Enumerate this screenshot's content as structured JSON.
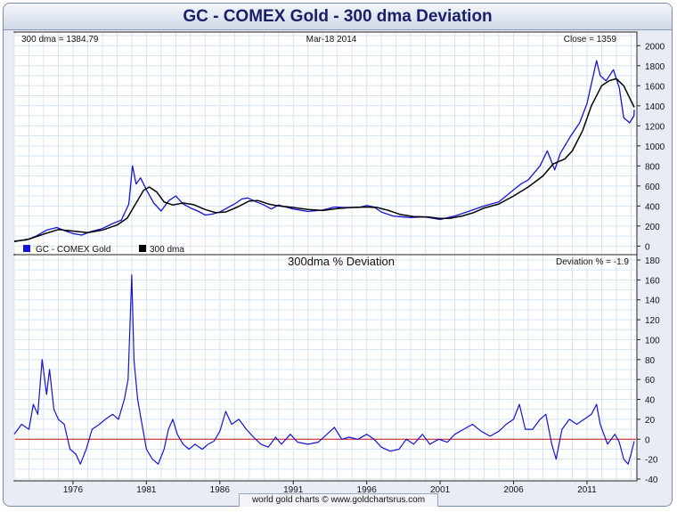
{
  "title": "GC - COMEX Gold - 300 dma Deviation",
  "footer": "world gold charts © www.goldchartsrus.com",
  "colors": {
    "price": "#1414d2",
    "dma": "#000000",
    "zero_line": "#cc1111",
    "grid": "#d6e4f2"
  },
  "chart_data": [
    {
      "type": "line",
      "info_left": "300 dma = 1384.79",
      "info_center": "Mar-18  2014",
      "info_right": "Close = 1359",
      "legend": [
        "GC - COMEX Gold",
        "300 dma"
      ],
      "ylim": [
        -50,
        2100
      ],
      "yticks": [
        0,
        200,
        400,
        600,
        800,
        1000,
        1200,
        1400,
        1600,
        1800,
        2000
      ],
      "series": [
        {
          "name": "GC - COMEX Gold",
          "color": "#1414d2",
          "points": [
            [
              1972.0,
              50
            ],
            [
              1972.8,
              60
            ],
            [
              1973.5,
              100
            ],
            [
              1974.2,
              160
            ],
            [
              1974.9,
              185
            ],
            [
              1975.5,
              150
            ],
            [
              1976.0,
              125
            ],
            [
              1976.6,
              110
            ],
            [
              1977.2,
              145
            ],
            [
              1978.0,
              175
            ],
            [
              1978.7,
              225
            ],
            [
              1979.3,
              260
            ],
            [
              1979.8,
              420
            ],
            [
              1980.05,
              800
            ],
            [
              1980.3,
              620
            ],
            [
              1980.6,
              680
            ],
            [
              1981.0,
              560
            ],
            [
              1981.5,
              430
            ],
            [
              1982.0,
              350
            ],
            [
              1982.5,
              450
            ],
            [
              1983.0,
              500
            ],
            [
              1983.5,
              420
            ],
            [
              1984.0,
              380
            ],
            [
              1984.5,
              350
            ],
            [
              1985.0,
              310
            ],
            [
              1985.5,
              320
            ],
            [
              1986.0,
              340
            ],
            [
              1986.5,
              380
            ],
            [
              1987.0,
              420
            ],
            [
              1987.5,
              470
            ],
            [
              1987.9,
              480
            ],
            [
              1988.5,
              440
            ],
            [
              1989.0,
              410
            ],
            [
              1989.5,
              370
            ],
            [
              1990.0,
              410
            ],
            [
              1991.0,
              370
            ],
            [
              1992.0,
              345
            ],
            [
              1993.0,
              360
            ],
            [
              1993.8,
              390
            ],
            [
              1994.5,
              385
            ],
            [
              1995.5,
              385
            ],
            [
              1996.0,
              405
            ],
            [
              1996.5,
              390
            ],
            [
              1997.0,
              340
            ],
            [
              1997.8,
              300
            ],
            [
              1998.5,
              290
            ],
            [
              1999.0,
              285
            ],
            [
              1999.7,
              290
            ],
            [
              2000.0,
              290
            ],
            [
              2001.0,
              265
            ],
            [
              2002.0,
              300
            ],
            [
              2003.0,
              350
            ],
            [
              2004.0,
              400
            ],
            [
              2005.0,
              440
            ],
            [
              2006.0,
              560
            ],
            [
              2006.5,
              620
            ],
            [
              2007.0,
              660
            ],
            [
              2007.8,
              800
            ],
            [
              2008.3,
              950
            ],
            [
              2008.8,
              760
            ],
            [
              2009.2,
              930
            ],
            [
              2009.9,
              1100
            ],
            [
              2010.5,
              1230
            ],
            [
              2011.0,
              1420
            ],
            [
              2011.65,
              1850
            ],
            [
              2011.9,
              1700
            ],
            [
              2012.3,
              1650
            ],
            [
              2012.8,
              1760
            ],
            [
              2013.2,
              1580
            ],
            [
              2013.5,
              1280
            ],
            [
              2013.9,
              1230
            ],
            [
              2014.2,
              1300
            ],
            [
              2014.22,
              1359
            ]
          ]
        },
        {
          "name": "300 dma",
          "color": "#000000",
          "points": [
            [
              1972.0,
              45
            ],
            [
              1973.0,
              70
            ],
            [
              1974.0,
              120
            ],
            [
              1975.0,
              165
            ],
            [
              1976.0,
              150
            ],
            [
              1977.0,
              135
            ],
            [
              1978.0,
              160
            ],
            [
              1979.0,
              210
            ],
            [
              1979.7,
              280
            ],
            [
              1980.3,
              430
            ],
            [
              1980.8,
              555
            ],
            [
              1981.2,
              590
            ],
            [
              1981.7,
              540
            ],
            [
              1982.2,
              440
            ],
            [
              1982.8,
              410
            ],
            [
              1983.5,
              430
            ],
            [
              1984.2,
              415
            ],
            [
              1985.0,
              365
            ],
            [
              1985.7,
              335
            ],
            [
              1986.4,
              340
            ],
            [
              1987.2,
              390
            ],
            [
              1988.0,
              450
            ],
            [
              1988.6,
              455
            ],
            [
              1989.3,
              420
            ],
            [
              1990.0,
              400
            ],
            [
              1991.0,
              385
            ],
            [
              1992.0,
              365
            ],
            [
              1993.0,
              355
            ],
            [
              1994.0,
              375
            ],
            [
              1995.0,
              385
            ],
            [
              1996.0,
              390
            ],
            [
              1996.7,
              385
            ],
            [
              1997.5,
              355
            ],
            [
              1998.3,
              315
            ],
            [
              1999.2,
              295
            ],
            [
              2000.2,
              290
            ],
            [
              2001.0,
              275
            ],
            [
              2001.7,
              278
            ],
            [
              2002.5,
              300
            ],
            [
              2003.3,
              335
            ],
            [
              2004.0,
              380
            ],
            [
              2005.0,
              420
            ],
            [
              2006.0,
              500
            ],
            [
              2007.0,
              590
            ],
            [
              2008.0,
              700
            ],
            [
              2008.7,
              820
            ],
            [
              2009.5,
              870
            ],
            [
              2010.0,
              950
            ],
            [
              2010.7,
              1150
            ],
            [
              2011.3,
              1400
            ],
            [
              2012.0,
              1600
            ],
            [
              2012.5,
              1650
            ],
            [
              2013.0,
              1670
            ],
            [
              2013.5,
              1600
            ],
            [
              2014.0,
              1450
            ],
            [
              2014.22,
              1384.79
            ]
          ]
        }
      ]
    },
    {
      "type": "line",
      "title": "300dma  %  Deviation",
      "info_right": "Deviation % = -1.9",
      "ylim": [
        -40,
        180
      ],
      "yticks": [
        -40,
        -20,
        0,
        20,
        40,
        60,
        80,
        100,
        120,
        140,
        160,
        180
      ],
      "xticks": [
        "1976",
        "1981",
        "1986",
        "1991",
        "1996",
        "2001",
        "2006",
        "2011"
      ],
      "xlim": [
        1972.0,
        2014.4
      ],
      "zero_line": 0,
      "series": [
        {
          "name": "Deviation %",
          "color": "#1414d2",
          "points": [
            [
              1972.0,
              5
            ],
            [
              1972.5,
              15
            ],
            [
              1973.0,
              10
            ],
            [
              1973.3,
              35
            ],
            [
              1973.6,
              25
            ],
            [
              1973.9,
              80
            ],
            [
              1974.2,
              45
            ],
            [
              1974.4,
              70
            ],
            [
              1974.7,
              30
            ],
            [
              1975.0,
              20
            ],
            [
              1975.4,
              15
            ],
            [
              1975.8,
              -10
            ],
            [
              1976.2,
              -15
            ],
            [
              1976.5,
              -25
            ],
            [
              1976.9,
              -10
            ],
            [
              1977.3,
              10
            ],
            [
              1977.8,
              15
            ],
            [
              1978.2,
              20
            ],
            [
              1978.7,
              25
            ],
            [
              1979.1,
              20
            ],
            [
              1979.5,
              40
            ],
            [
              1979.75,
              60
            ],
            [
              1980.0,
              165
            ],
            [
              1980.15,
              80
            ],
            [
              1980.4,
              40
            ],
            [
              1980.7,
              15
            ],
            [
              1981.0,
              -10
            ],
            [
              1981.4,
              -20
            ],
            [
              1981.8,
              -25
            ],
            [
              1982.2,
              -10
            ],
            [
              1982.5,
              10
            ],
            [
              1982.8,
              20
            ],
            [
              1983.1,
              5
            ],
            [
              1983.5,
              -5
            ],
            [
              1983.9,
              -10
            ],
            [
              1984.3,
              -5
            ],
            [
              1984.8,
              -10
            ],
            [
              1985.2,
              -5
            ],
            [
              1985.6,
              -2
            ],
            [
              1986.0,
              8
            ],
            [
              1986.4,
              28
            ],
            [
              1986.8,
              15
            ],
            [
              1987.3,
              20
            ],
            [
              1987.8,
              10
            ],
            [
              1988.3,
              2
            ],
            [
              1988.8,
              -5
            ],
            [
              1989.3,
              -8
            ],
            [
              1989.8,
              2
            ],
            [
              1990.2,
              -5
            ],
            [
              1990.8,
              5
            ],
            [
              1991.3,
              -3
            ],
            [
              1992.0,
              -5
            ],
            [
              1992.7,
              -3
            ],
            [
              1993.3,
              5
            ],
            [
              1993.8,
              12
            ],
            [
              1994.3,
              0
            ],
            [
              1994.8,
              2
            ],
            [
              1995.4,
              0
            ],
            [
              1996.0,
              5
            ],
            [
              1996.5,
              0
            ],
            [
              1997.0,
              -8
            ],
            [
              1997.6,
              -12
            ],
            [
              1998.2,
              -10
            ],
            [
              1998.7,
              0
            ],
            [
              1999.2,
              -5
            ],
            [
              1999.8,
              5
            ],
            [
              2000.3,
              -5
            ],
            [
              2000.9,
              0
            ],
            [
              2001.5,
              -3
            ],
            [
              2002.0,
              5
            ],
            [
              2002.6,
              10
            ],
            [
              2003.2,
              15
            ],
            [
              2003.8,
              8
            ],
            [
              2004.4,
              3
            ],
            [
              2005.0,
              8
            ],
            [
              2005.5,
              15
            ],
            [
              2006.0,
              20
            ],
            [
              2006.4,
              35
            ],
            [
              2006.8,
              10
            ],
            [
              2007.3,
              10
            ],
            [
              2007.8,
              20
            ],
            [
              2008.2,
              25
            ],
            [
              2008.6,
              -5
            ],
            [
              2008.9,
              -20
            ],
            [
              2009.3,
              10
            ],
            [
              2009.8,
              20
            ],
            [
              2010.3,
              15
            ],
            [
              2010.8,
              20
            ],
            [
              2011.3,
              25
            ],
            [
              2011.65,
              35
            ],
            [
              2011.9,
              15
            ],
            [
              2012.4,
              -5
            ],
            [
              2012.9,
              5
            ],
            [
              2013.2,
              -3
            ],
            [
              2013.5,
              -20
            ],
            [
              2013.8,
              -25
            ],
            [
              2014.0,
              -15
            ],
            [
              2014.22,
              -1.9
            ]
          ]
        }
      ]
    }
  ]
}
